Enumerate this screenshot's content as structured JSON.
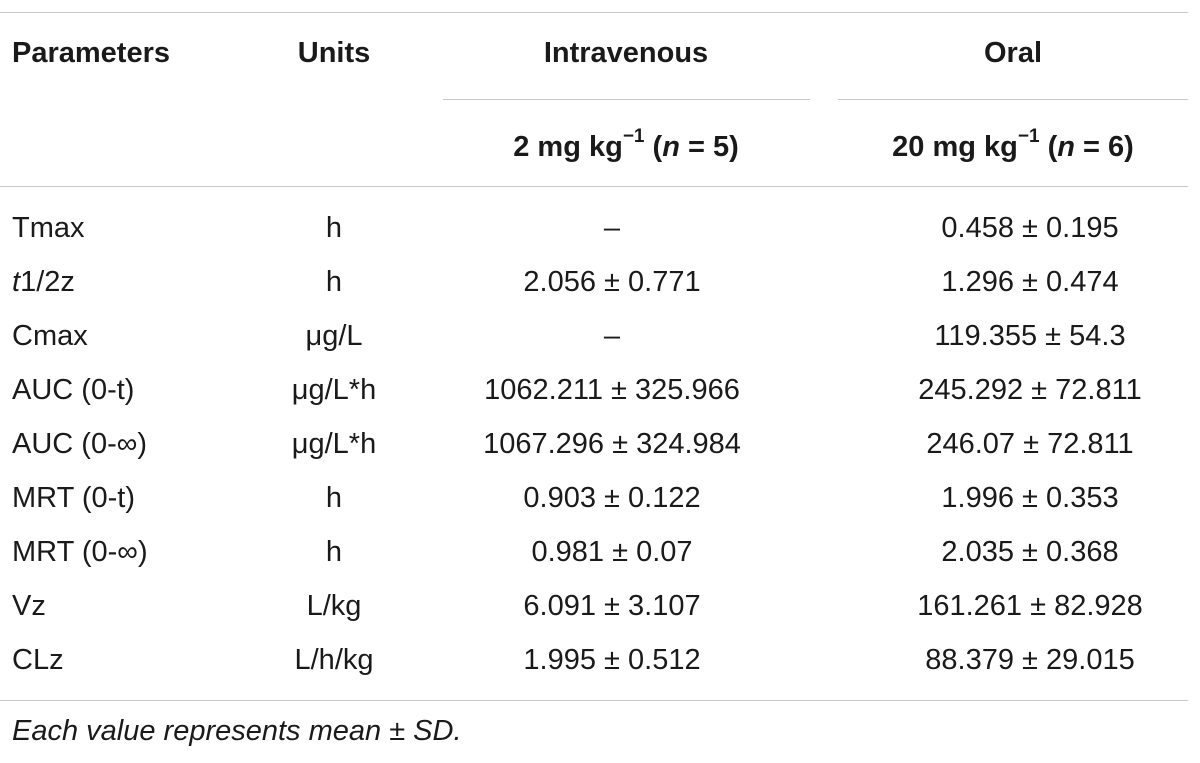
{
  "table": {
    "headers": {
      "parameters": "Parameters",
      "units": "Units",
      "intravenous": "Intravenous",
      "oral": "Oral"
    },
    "subheaders": {
      "intravenous": {
        "dose": "2 mg kg",
        "exponent": "−1",
        "n_label": "n",
        "n_value": " = 5)"
      },
      "oral": {
        "dose": "20 mg kg",
        "exponent": "−1",
        "n_label": "n",
        "n_value": " = 6)"
      }
    },
    "rows": [
      {
        "parameter": "Tmax",
        "unit": "h",
        "intravenous": "–",
        "oral": "0.458 ± 0.195"
      },
      {
        "parameter": "t1/2z",
        "unit": "h",
        "intravenous": "2.056 ± 0.771",
        "oral": "1.296 ± 0.474"
      },
      {
        "parameter": "Cmax",
        "unit": "μg/L",
        "intravenous": "–",
        "oral": "119.355 ± 54.3"
      },
      {
        "parameter": "AUC (0-t)",
        "unit": "μg/L*h",
        "intravenous": "1062.211 ± 325.966",
        "oral": "245.292 ± 72.811"
      },
      {
        "parameter": "AUC (0-∞)",
        "unit": "μg/L*h",
        "intravenous": "1067.296 ± 324.984",
        "oral": "246.07 ± 72.811"
      },
      {
        "parameter": "MRT (0-t)",
        "unit": "h",
        "intravenous": "0.903 ± 0.122",
        "oral": "1.996 ± 0.353"
      },
      {
        "parameter": "MRT (0-∞)",
        "unit": "h",
        "intravenous": "0.981 ± 0.07",
        "oral": "2.035 ± 0.368"
      },
      {
        "parameter": "Vz",
        "unit": "L/kg",
        "intravenous": "6.091 ± 3.107",
        "oral": "161.261 ± 82.928"
      },
      {
        "parameter": "CLz",
        "unit": "L/h/kg",
        "intravenous": "1.995 ± 0.512",
        "oral": "88.379 ± 29.015"
      }
    ],
    "footnote": "Each value represents mean ± SD."
  }
}
